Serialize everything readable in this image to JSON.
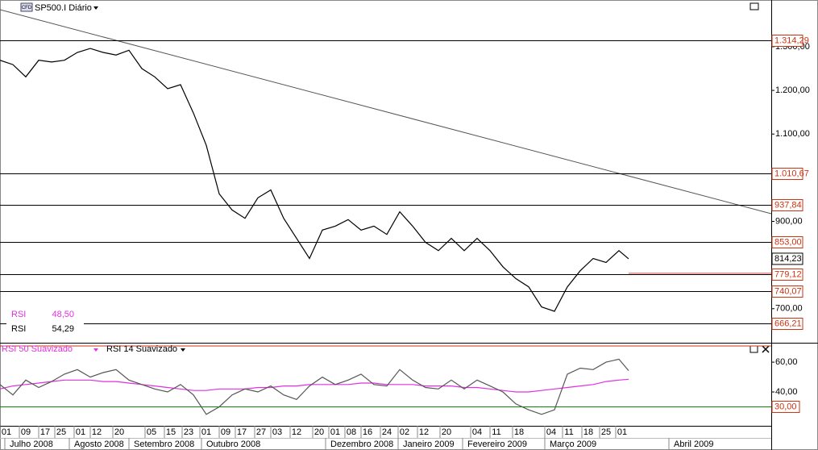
{
  "chart_data": [
    {
      "type": "line",
      "title": "SP500.I Diário",
      "icon": "CFD",
      "xlim": [
        0,
        239.25
      ],
      "x": [
        0,
        4,
        8,
        12,
        16,
        20,
        24,
        28,
        32,
        36,
        40,
        44,
        48,
        52,
        56,
        60,
        64,
        68,
        72,
        76,
        80,
        84,
        88,
        92,
        96,
        100,
        104,
        108,
        112,
        116,
        120,
        124,
        128,
        132,
        136,
        140,
        144,
        148,
        152,
        156,
        160,
        164,
        168,
        172,
        176,
        180,
        184,
        188,
        192,
        195
      ],
      "series": [
        {
          "name": "SP500.I",
          "color": "#000000",
          "values": [
            1269,
            1259,
            1231,
            1269,
            1265,
            1269,
            1287,
            1296,
            1287,
            1281,
            1292,
            1250,
            1231,
            1204,
            1213,
            1148,
            1074,
            963,
            926,
            907,
            954,
            972,
            907,
            861,
            815,
            880,
            889,
            904,
            880,
            889,
            870,
            922,
            889,
            852,
            833,
            861,
            833,
            861,
            833,
            796,
            769,
            750,
            704,
            694,
            750,
            787,
            815,
            806,
            833,
            814.23
          ]
        }
      ],
      "ylim": [
        622,
        1407
      ],
      "yticks": [
        {
          "value": 1300,
          "label": "1.300,00"
        },
        {
          "value": 1200,
          "label": "1.200,00"
        },
        {
          "value": 1100,
          "label": "1.100,00"
        },
        {
          "value": 900,
          "label": "900,00"
        },
        {
          "value": 700,
          "label": "700,00"
        }
      ],
      "levels": [
        {
          "value": 1314.29,
          "label": "1.314,29"
        },
        {
          "value": 1010.67,
          "label": "1.010,67"
        },
        {
          "value": 937.84,
          "label": "937,84"
        },
        {
          "value": 853,
          "label": "853,00"
        },
        {
          "value": 779.12,
          "label": "779,12"
        },
        {
          "value": 740.07,
          "label": "740,07"
        },
        {
          "value": 666.21,
          "label": "666,21"
        }
      ],
      "last_price": {
        "value": 814.23,
        "label": "814,23"
      },
      "level_color": "#cc3311"
    },
    {
      "type": "line",
      "legend": [
        "RSI 50 Suavizado",
        "RSI 14 Suavizado"
      ],
      "xlim": [
        0,
        239.25
      ],
      "x": [
        0,
        4,
        8,
        12,
        16,
        20,
        24,
        28,
        32,
        36,
        40,
        44,
        48,
        52,
        56,
        60,
        64,
        68,
        72,
        76,
        80,
        84,
        88,
        92,
        96,
        100,
        104,
        108,
        112,
        116,
        120,
        124,
        128,
        132,
        136,
        140,
        144,
        148,
        152,
        156,
        160,
        164,
        168,
        172,
        176,
        180,
        184,
        188,
        192,
        195
      ],
      "series": [
        {
          "name": "RSI 50 Suavizado",
          "color": "#e030e0",
          "values": [
            42,
            44,
            45,
            46,
            47,
            48,
            48,
            48,
            47,
            47,
            46,
            45,
            44,
            43,
            42,
            41,
            41,
            42,
            42,
            42,
            43,
            43,
            44,
            44,
            45,
            45,
            45,
            45,
            46,
            46,
            45,
            45,
            45,
            44,
            44,
            44,
            43,
            43,
            42,
            41,
            40,
            40,
            41,
            42,
            43,
            44,
            45,
            47,
            48,
            48.5
          ]
        },
        {
          "name": "RSI 14 Suavizado",
          "color": "#555555",
          "values": [
            45,
            38,
            48,
            43,
            47,
            52,
            55,
            50,
            53,
            55,
            48,
            45,
            42,
            40,
            45,
            38,
            25,
            30,
            38,
            42,
            40,
            44,
            38,
            35,
            44,
            50,
            45,
            48,
            52,
            45,
            44,
            55,
            48,
            43,
            42,
            48,
            42,
            48,
            44,
            40,
            32,
            28,
            25,
            28,
            52,
            56,
            55,
            60,
            62,
            54.29
          ]
        }
      ],
      "readings": [
        {
          "name": "RSI",
          "value": 48.5,
          "label": "48,50",
          "color": "#e030e0"
        },
        {
          "name": "RSI",
          "value": 54.29,
          "label": "54,29",
          "color": "#000000"
        }
      ],
      "ylim": [
        17.3,
        71.4
      ],
      "yticks": [
        {
          "value": 60,
          "label": "60,00"
        },
        {
          "value": 40,
          "label": "40,00"
        }
      ],
      "level": {
        "value": 30,
        "label": "30,00"
      },
      "xticks": [
        {
          "value": 2,
          "label": "01"
        },
        {
          "value": 8,
          "label": "09"
        },
        {
          "value": 14,
          "label": "17"
        },
        {
          "value": 19,
          "label": "25"
        },
        {
          "value": 25,
          "label": "01"
        },
        {
          "value": 30,
          "label": "12"
        },
        {
          "value": 37,
          "label": "20"
        },
        {
          "value": 47,
          "label": "05"
        },
        {
          "value": 53,
          "label": "15"
        },
        {
          "value": 58.5,
          "label": "23"
        },
        {
          "value": 64,
          "label": "01"
        },
        {
          "value": 70,
          "label": "09"
        },
        {
          "value": 75,
          "label": "17"
        },
        {
          "value": 81,
          "label": "27"
        },
        {
          "value": 86,
          "label": "03"
        },
        {
          "value": 92,
          "label": "12"
        },
        {
          "value": 99,
          "label": "20"
        },
        {
          "value": 104,
          "label": "01"
        },
        {
          "value": 109,
          "label": "08"
        },
        {
          "value": 114,
          "label": "16"
        },
        {
          "value": 120,
          "label": "24"
        },
        {
          "value": 125.5,
          "label": "02"
        },
        {
          "value": 131.5,
          "label": "12"
        },
        {
          "value": 138.5,
          "label": "20"
        },
        {
          "value": 148,
          "label": "04"
        },
        {
          "value": 154,
          "label": "11"
        },
        {
          "value": 161,
          "label": "18"
        },
        {
          "value": 171,
          "label": "04"
        },
        {
          "value": 176.5,
          "label": "11"
        },
        {
          "value": 182.5,
          "label": "18"
        },
        {
          "value": 188,
          "label": "25"
        },
        {
          "value": 193,
          "label": "01"
        }
      ],
      "month_ticks": [
        {
          "value": 3,
          "label": "Julho 2008"
        },
        {
          "value": 23,
          "label": "Agosto 2008"
        },
        {
          "value": 41.5,
          "label": "Setembro 2008"
        },
        {
          "value": 64,
          "label": "Outubro 2008"
        },
        {
          "value": 102.5,
          "label": "Dezembro 2008"
        },
        {
          "value": 125,
          "label": "Janeiro 2009"
        },
        {
          "value": 145,
          "label": "Fevereiro 2009"
        },
        {
          "value": 170.5,
          "label": "Março 2009"
        },
        {
          "value": 209,
          "label": "Abril 2009"
        }
      ]
    }
  ]
}
